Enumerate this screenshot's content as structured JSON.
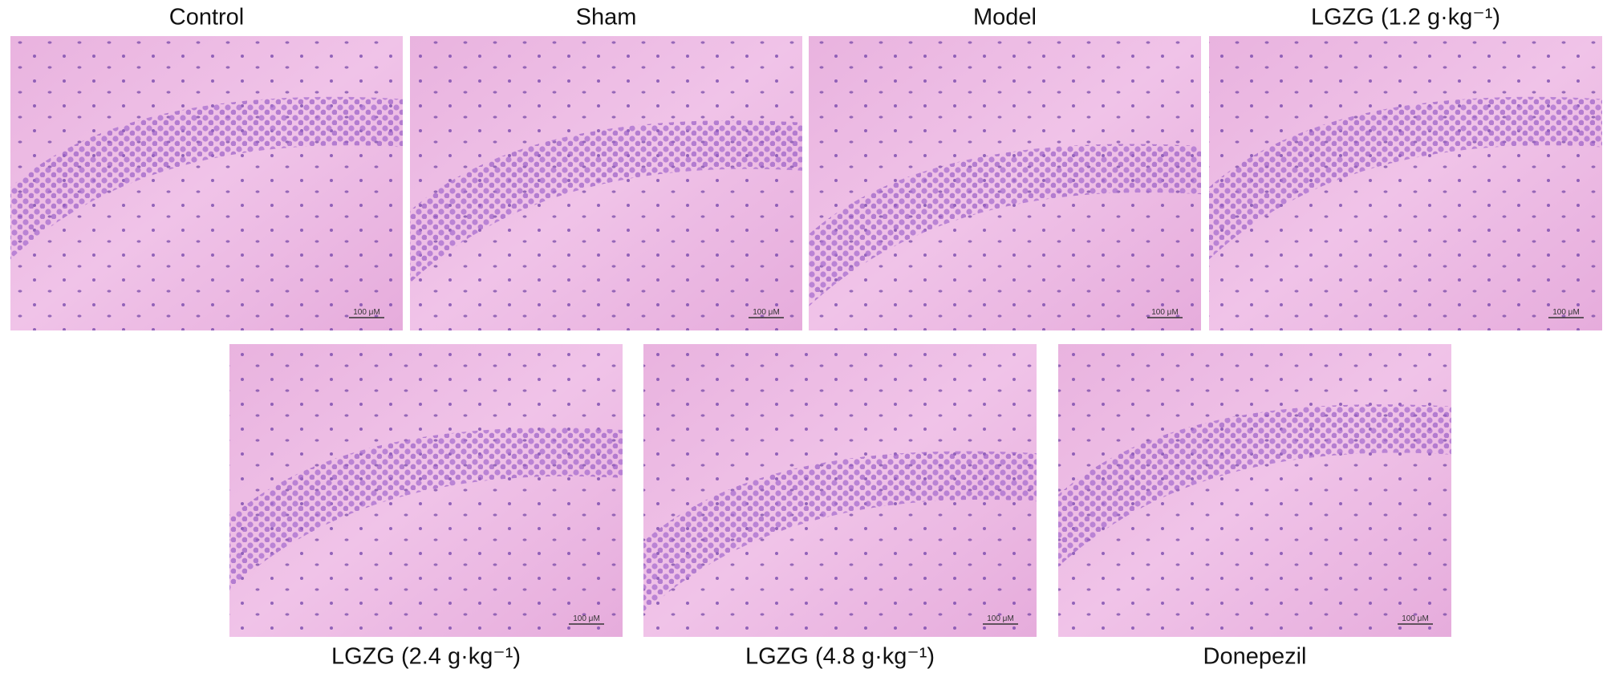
{
  "panels": [
    {
      "label": "Control",
      "scale_bar": "100 μM"
    },
    {
      "label": "Sham",
      "scale_bar": "100 μM"
    },
    {
      "label": "Model",
      "scale_bar": "100 μM"
    },
    {
      "label": "LGZG (1.2 g·kg⁻¹)",
      "scale_bar": "100 μM"
    },
    {
      "label": "LGZG (2.4 g·kg⁻¹)",
      "scale_bar": "100 μM"
    },
    {
      "label": "LGZG (4.8 g·kg⁻¹)",
      "scale_bar": "100 μM"
    },
    {
      "label": "Donepezil",
      "scale_bar": "100 μM"
    }
  ]
}
